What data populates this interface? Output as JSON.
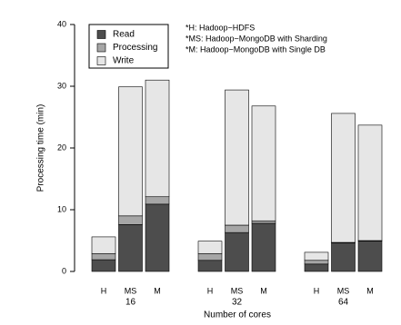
{
  "chart_data": {
    "type": "stacked-bar",
    "categories": [
      "H",
      "MS",
      "M",
      "H",
      "MS",
      "M",
      "H",
      "MS",
      "M"
    ],
    "groups": [
      "16",
      "32",
      "64"
    ],
    "series": [
      {
        "name": "Read",
        "color": "#4d4d4d",
        "values": [
          1.9,
          7.6,
          10.9,
          1.8,
          6.3,
          7.8,
          1.2,
          4.6,
          4.9
        ]
      },
      {
        "name": "Processing",
        "color": "#a6a6a6",
        "values": [
          1.0,
          1.4,
          1.2,
          1.1,
          1.2,
          0.4,
          0.6,
          0.1,
          0.1
        ]
      },
      {
        "name": "Write",
        "color": "#e6e6e6",
        "values": [
          2.7,
          20.9,
          18.9,
          2.0,
          21.9,
          18.6,
          1.3,
          20.9,
          18.7
        ]
      }
    ],
    "ylim": [
      0,
      40
    ],
    "yticks": [
      0,
      10,
      20,
      30,
      40
    ],
    "y_label": "Processing time (min)",
    "x_label": "Number of cores",
    "annotations": [
      "*H: Hadoop−HDFS",
      "*MS: Hadoop−MongoDB with Sharding",
      "*M: Hadoop−MongoDB with Single DB"
    ]
  }
}
